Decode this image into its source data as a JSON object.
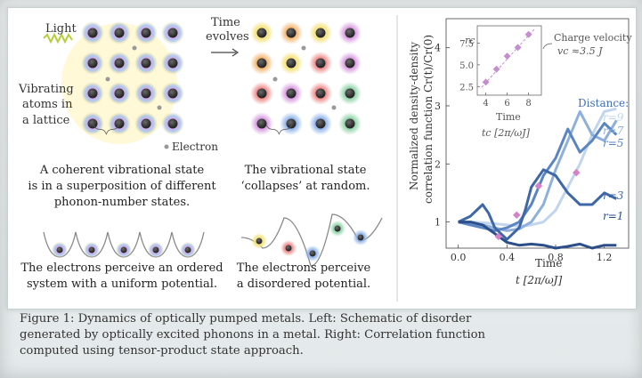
{
  "left_panel": {
    "label_light": "Light",
    "label_time": "Time",
    "label_evolves": "evolves",
    "label_vibrating": [
      "Vibrating",
      "atoms in",
      "a lattice"
    ],
    "label_electron": "Electron",
    "coherent_text": [
      "A coherent vibrational state",
      "is in a superposition of different",
      "phonon-number states."
    ],
    "collapse_text": [
      "The vibrational state",
      "‘collapses’ at random."
    ],
    "ordered_text": [
      "The electrons perceive an ordered",
      "system with a uniform potential."
    ],
    "disordered_text": [
      "The electrons perceive",
      "a disordered potential."
    ]
  },
  "chart_data": {
    "type": "line",
    "ylabel_line1": "Normalized density-density",
    "ylabel_line2": "correlation function Cr(t)/Cr(0)",
    "xlabel": "Time",
    "xunit": "t [2π/ωJ]",
    "xlim": [
      -0.1,
      1.4
    ],
    "ylim": [
      0.55,
      4.5
    ],
    "xticks": [
      "0.0",
      "0.4",
      "0.8",
      "1.2"
    ],
    "yticks": [
      "1",
      "2",
      "3",
      "4"
    ],
    "legend_title": "Distance:",
    "series": [
      {
        "name": "r=1",
        "color": "#2c4f8a",
        "x": [
          0.0,
          0.1,
          0.2,
          0.3,
          0.4,
          0.5,
          0.6,
          0.7,
          0.8,
          0.9,
          1.0,
          1.1,
          1.2,
          1.3
        ],
        "y": [
          1.0,
          1.0,
          0.95,
          0.8,
          0.65,
          0.6,
          0.62,
          0.6,
          0.55,
          0.58,
          0.62,
          0.55,
          0.6,
          0.6
        ]
      },
      {
        "name": "r=3",
        "color": "#3e67a8",
        "x": [
          0.0,
          0.1,
          0.15,
          0.2,
          0.25,
          0.3,
          0.4,
          0.5,
          0.55,
          0.6,
          0.7,
          0.8,
          0.9,
          1.0,
          1.1,
          1.2,
          1.3
        ],
        "y": [
          1.0,
          1.1,
          1.2,
          1.3,
          1.15,
          0.9,
          0.7,
          0.9,
          1.2,
          1.6,
          1.9,
          1.8,
          1.5,
          1.3,
          1.3,
          1.5,
          1.4
        ]
      },
      {
        "name": "r=5",
        "color": "#5a85c2",
        "x": [
          0.0,
          0.1,
          0.2,
          0.3,
          0.4,
          0.5,
          0.6,
          0.7,
          0.8,
          0.9,
          1.0,
          1.1,
          1.2,
          1.3
        ],
        "y": [
          1.0,
          0.95,
          0.9,
          0.85,
          0.9,
          1.0,
          1.3,
          1.8,
          2.1,
          2.6,
          2.2,
          2.4,
          2.7,
          2.5
        ]
      },
      {
        "name": "r=7",
        "color": "#8fb0da",
        "x": [
          0.0,
          0.1,
          0.2,
          0.3,
          0.4,
          0.5,
          0.6,
          0.7,
          0.8,
          0.9,
          1.0,
          1.1,
          1.2,
          1.3
        ],
        "y": [
          1.0,
          0.98,
          0.95,
          0.9,
          0.85,
          0.88,
          1.0,
          1.3,
          1.9,
          2.4,
          2.9,
          2.5,
          2.4,
          2.75
        ]
      },
      {
        "name": "r=9",
        "color": "#c2d5ee",
        "x": [
          0.0,
          0.1,
          0.2,
          0.3,
          0.4,
          0.5,
          0.6,
          0.7,
          0.8,
          0.9,
          1.0,
          1.1,
          1.2,
          1.3
        ],
        "y": [
          1.0,
          1.0,
          0.99,
          0.97,
          0.95,
          0.93,
          0.95,
          1.0,
          1.2,
          1.6,
          2.0,
          2.5,
          2.9,
          2.95
        ]
      }
    ],
    "markers": {
      "color": "#d681c9",
      "x": [
        0.33,
        0.48,
        0.66,
        0.97
      ],
      "y": [
        0.75,
        1.12,
        1.62,
        1.85
      ]
    },
    "inset": {
      "type": "scatter",
      "ylabel": "rc",
      "xlabel": "Time",
      "xunit": "tc [2π/ωJ]",
      "xticks": [
        "4",
        "6",
        "8"
      ],
      "yticks": [
        "2.5",
        "5.0",
        "7.5"
      ],
      "xlim": [
        3.2,
        9.2
      ],
      "ylim": [
        1.5,
        9.5
      ],
      "x": [
        4,
        5,
        6,
        7,
        8
      ],
      "y": [
        3,
        4.5,
        6,
        7,
        8.5
      ],
      "annotation_line1": "Charge velocity",
      "annotation_line2": "vc ≈3.5 J",
      "color": "#c48fcf"
    }
  },
  "caption": [
    "Figure 1: Dynamics of optically pumped metals. Left: Schematic of disorder",
    "generated by optically excited phonons in a metal. Right: Correlation function",
    "computed using tensor-product state approach."
  ]
}
